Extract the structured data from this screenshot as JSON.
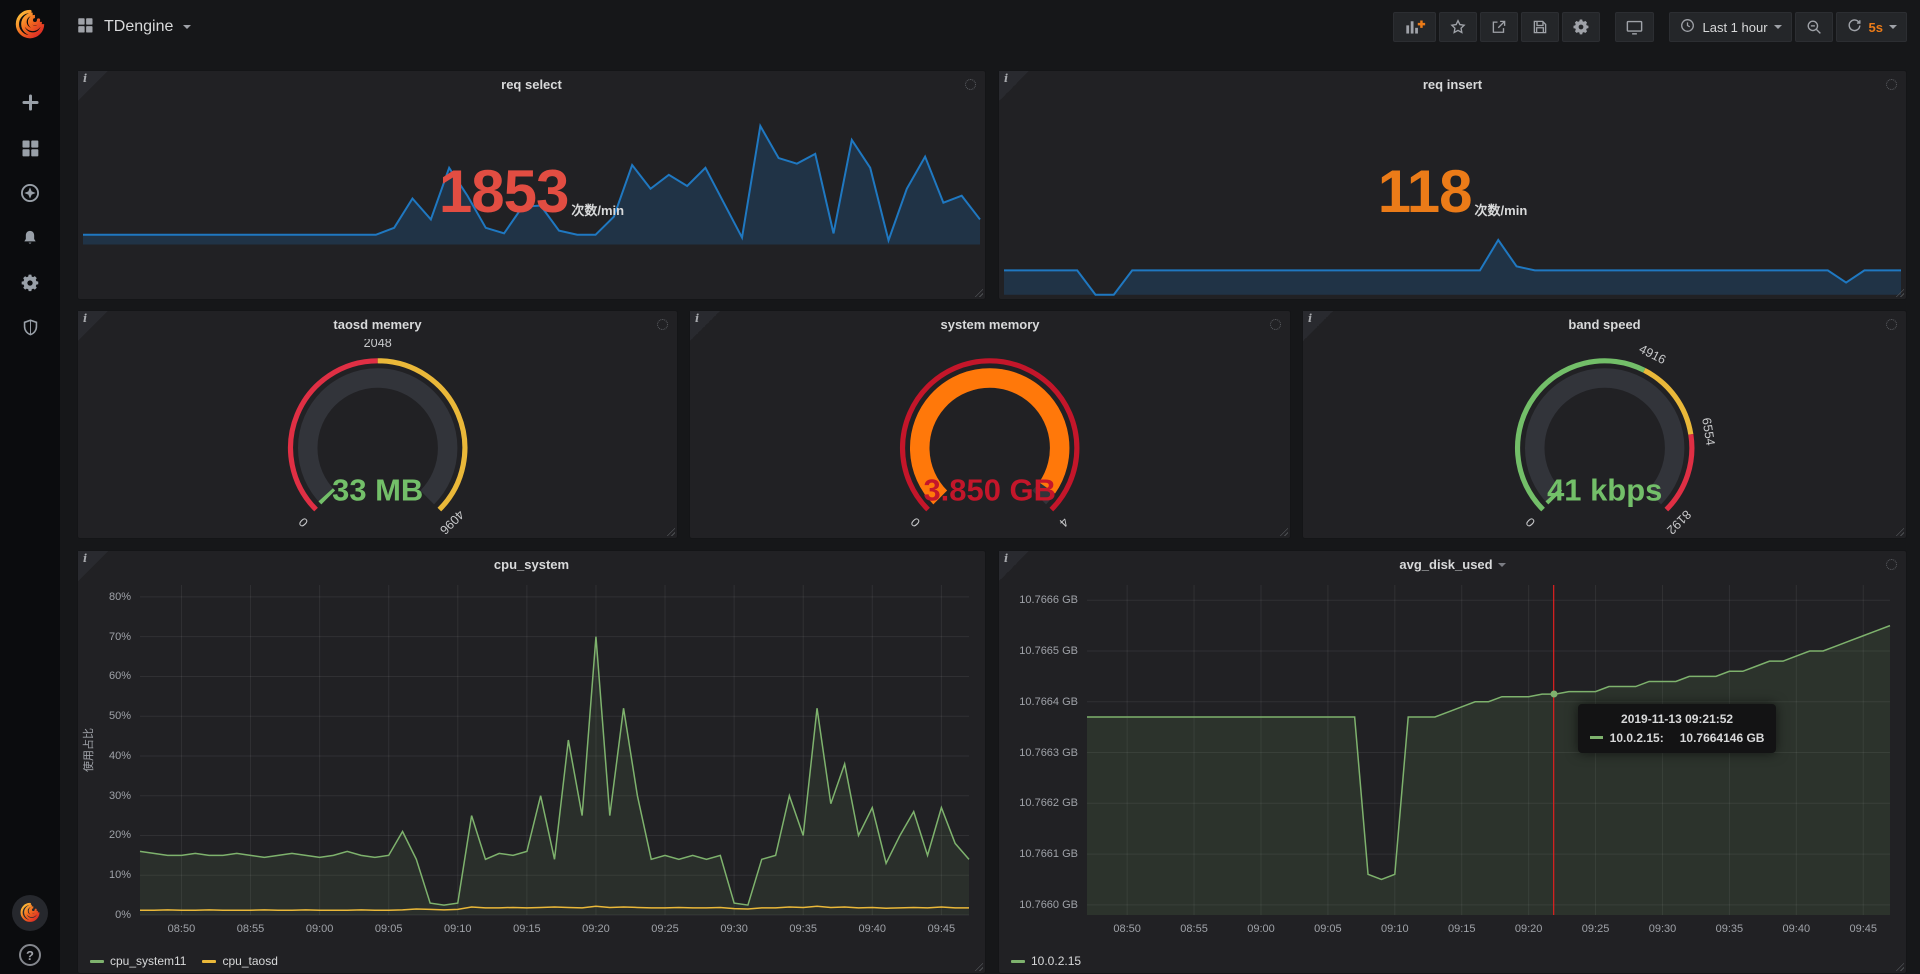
{
  "navbar": {
    "title": "TDengine",
    "time_picker": {
      "label": "Last 1 hour"
    },
    "refresh": {
      "interval": "5s"
    }
  },
  "sidebar": {
    "icons": [
      "plus",
      "dashboards",
      "explore",
      "alerting",
      "configuration",
      "server-admin"
    ],
    "help": "?"
  },
  "panels": {
    "req_select": {
      "title": "req select",
      "value": "1853",
      "unit": "次数/min",
      "value_color": "#e24d42",
      "spark": {
        "color": "#1f78c1",
        "fill": "rgba(31,120,193,0.22)",
        "values": [
          7,
          7,
          7,
          7,
          7,
          7,
          7,
          7,
          7,
          7,
          7,
          7,
          7,
          7,
          7,
          7,
          7,
          12,
          33,
          18,
          55,
          35,
          12,
          8,
          27,
          28,
          10,
          7,
          7,
          20,
          57,
          40,
          50,
          42,
          55,
          30,
          5,
          85,
          62,
          58,
          65,
          8,
          75,
          55,
          3,
          40,
          63,
          30,
          35,
          18
        ]
      }
    },
    "req_insert": {
      "title": "req insert",
      "value": "118",
      "unit": "次数/min",
      "value_color": "#eb7b18",
      "spark": {
        "color": "#1f78c1",
        "fill": "rgba(31,120,193,0.22)",
        "values": [
          12,
          12,
          12,
          12,
          12,
          0,
          0,
          12,
          12,
          12,
          12,
          12,
          12,
          12,
          12,
          12,
          12,
          12,
          12,
          12,
          12,
          12,
          12,
          12,
          12,
          12,
          12,
          27,
          14,
          12,
          12,
          12,
          12,
          12,
          12,
          12,
          12,
          12,
          12,
          12,
          12,
          12,
          12,
          12,
          12,
          12,
          6,
          12,
          12,
          12
        ]
      }
    },
    "taosd_memory": {
      "title": "taosd memery",
      "value_text": "33 MB",
      "value": 33,
      "value_color": "#73bf69",
      "min": 0,
      "max": 4096,
      "bar_color": "#73bf69",
      "segments": [
        {
          "to": 2048,
          "color": "#e02f44"
        },
        {
          "to": 4096,
          "color": "#eab839"
        }
      ],
      "tick_labels": [
        {
          "value": 0,
          "label": "0"
        },
        {
          "value": 2048,
          "label": "2048"
        },
        {
          "value": 4096,
          "label": "4096"
        }
      ]
    },
    "system_memory": {
      "title": "system memory",
      "value_text": "3.850 GB",
      "value": 3.85,
      "value_color": "#c4162a",
      "min": 0,
      "max": 4,
      "bar_color": "#ff780a",
      "segments": [
        {
          "to": 4,
          "color": "#c4162a"
        }
      ],
      "tick_labels": [
        {
          "value": 0,
          "label": "0"
        },
        {
          "value": 4,
          "label": "4"
        }
      ]
    },
    "band_speed": {
      "title": "band speed",
      "value_text": "41 kbps",
      "value": 41,
      "value_color": "#73bf69",
      "min": 0,
      "max": 8192,
      "bar_color": "#73bf69",
      "segments": [
        {
          "to": 4916,
          "color": "#73bf69"
        },
        {
          "to": 6554,
          "color": "#eab839"
        },
        {
          "to": 8192,
          "color": "#e02f44"
        }
      ],
      "tick_labels": [
        {
          "value": 0,
          "label": "0"
        },
        {
          "value": 4916,
          "label": "4916"
        },
        {
          "value": 6554,
          "label": "6554"
        },
        {
          "value": 8192,
          "label": "8192"
        }
      ]
    },
    "cpu_system": {
      "title": "cpu_system",
      "chart": {
        "type": "line",
        "ylabel": "使用占比",
        "ylim": [
          0,
          83
        ],
        "x_minutes": 60,
        "y_ticks": [
          {
            "v": 0,
            "label": "0%"
          },
          {
            "v": 10,
            "label": "10%"
          },
          {
            "v": 20,
            "label": "20%"
          },
          {
            "v": 30,
            "label": "30%"
          },
          {
            "v": 40,
            "label": "40%"
          },
          {
            "v": 50,
            "label": "50%"
          },
          {
            "v": 60,
            "label": "60%"
          },
          {
            "v": 70,
            "label": "70%"
          },
          {
            "v": 80,
            "label": "80%"
          }
        ],
        "x_ticks": [
          {
            "m": 3,
            "label": "08:50"
          },
          {
            "m": 8,
            "label": "08:55"
          },
          {
            "m": 13,
            "label": "09:00"
          },
          {
            "m": 18,
            "label": "09:05"
          },
          {
            "m": 23,
            "label": "09:10"
          },
          {
            "m": 28,
            "label": "09:15"
          },
          {
            "m": 33,
            "label": "09:20"
          },
          {
            "m": 38,
            "label": "09:25"
          },
          {
            "m": 43,
            "label": "09:30"
          },
          {
            "m": 48,
            "label": "09:35"
          },
          {
            "m": 53,
            "label": "09:40"
          },
          {
            "m": 58,
            "label": "09:45"
          }
        ],
        "series": [
          {
            "name": "cpu_system11",
            "color": "#7eb26d",
            "fill": "rgba(126,178,109,0.10)",
            "values": [
              16,
              15.5,
              15,
              15,
              15.5,
              15,
              15,
              15.5,
              15,
              14.5,
              15,
              15.5,
              15,
              14.5,
              15,
              16,
              15,
              14.5,
              15,
              21,
              14,
              3,
              2.5,
              3,
              25,
              14,
              15.5,
              15,
              16,
              30,
              14,
              44,
              25,
              70,
              25,
              52,
              30,
              14,
              15,
              14,
              15,
              14,
              15,
              3,
              2.5,
              14,
              15,
              30,
              20,
              52,
              28,
              38,
              20,
              27,
              13,
              20,
              26,
              15,
              27,
              18,
              14
            ]
          },
          {
            "name": "cpu_taosd",
            "color": "#eab839",
            "fill": "none",
            "values": [
              1.2,
              1.2,
              1.3,
              1.2,
              1.2,
              1.3,
              1.2,
              1.2,
              1.2,
              1.3,
              1.2,
              1.2,
              1.3,
              1.2,
              1.2,
              1.2,
              1.3,
              1.2,
              1.2,
              1.3,
              1.5,
              1.4,
              1.3,
              1.4,
              2,
              1.8,
              1.8,
              1.9,
              1.8,
              1.9,
              2,
              1.9,
              1.8,
              2.2,
              1.9,
              2,
              1.9,
              1.8,
              1.8,
              1.9,
              1.8,
              1.8,
              1.9,
              1.6,
              1.5,
              1.8,
              1.8,
              2,
              1.9,
              2.2,
              1.9,
              2,
              1.8,
              1.9,
              1.7,
              1.8,
              1.9,
              1.8,
              2,
              1.8,
              1.8
            ]
          }
        ]
      }
    },
    "avg_disk_used": {
      "title": "avg_disk_used",
      "chart": {
        "type": "line",
        "ylim": [
          10.76598,
          10.76663
        ],
        "x_minutes": 60,
        "y_ticks": [
          {
            "v": 10.766,
            "label": "10.7660 GB"
          },
          {
            "v": 10.7661,
            "label": "10.7661 GB"
          },
          {
            "v": 10.7662,
            "label": "10.7662 GB"
          },
          {
            "v": 10.7663,
            "label": "10.7663 GB"
          },
          {
            "v": 10.7664,
            "label": "10.7664 GB"
          },
          {
            "v": 10.7665,
            "label": "10.7665 GB"
          },
          {
            "v": 10.7666,
            "label": "10.7666 GB"
          }
        ],
        "x_ticks": [
          {
            "m": 3,
            "label": "08:50"
          },
          {
            "m": 8,
            "label": "08:55"
          },
          {
            "m": 13,
            "label": "09:00"
          },
          {
            "m": 18,
            "label": "09:05"
          },
          {
            "m": 23,
            "label": "09:10"
          },
          {
            "m": 28,
            "label": "09:15"
          },
          {
            "m": 33,
            "label": "09:20"
          },
          {
            "m": 38,
            "label": "09:25"
          },
          {
            "m": 43,
            "label": "09:30"
          },
          {
            "m": 48,
            "label": "09:35"
          },
          {
            "m": 53,
            "label": "09:40"
          },
          {
            "m": 58,
            "label": "09:45"
          }
        ],
        "cursor": {
          "minute": 34.87,
          "color": "#e02020"
        },
        "series": [
          {
            "name": "10.0.2.15",
            "color": "#7eb26d",
            "fill": "rgba(126,178,109,0.12)",
            "values": [
              10.76637,
              10.76637,
              10.76637,
              10.76637,
              10.76637,
              10.76637,
              10.76637,
              10.76637,
              10.76637,
              10.76637,
              10.76637,
              10.76637,
              10.76637,
              10.76637,
              10.76637,
              10.76637,
              10.76637,
              10.76637,
              10.76637,
              10.76637,
              10.76637,
              10.76606,
              10.76605,
              10.76606,
              10.76637,
              10.76637,
              10.76637,
              10.76638,
              10.76639,
              10.7664,
              10.7664,
              10.76641,
              10.76641,
              10.76641,
              10.766415,
              10.766415,
              10.76642,
              10.76642,
              10.76642,
              10.76643,
              10.76643,
              10.76643,
              10.76644,
              10.76644,
              10.76644,
              10.76645,
              10.76645,
              10.76645,
              10.76646,
              10.76646,
              10.76647,
              10.76648,
              10.76648,
              10.76649,
              10.7665,
              10.7665,
              10.76651,
              10.76652,
              10.76653,
              10.76654,
              10.76655
            ]
          }
        ]
      },
      "tooltip": {
        "time": "2019-11-13 09:21:52",
        "series_label": "10.0.2.15:",
        "value": "10.7664146 GB",
        "color": "#7eb26d"
      }
    }
  }
}
